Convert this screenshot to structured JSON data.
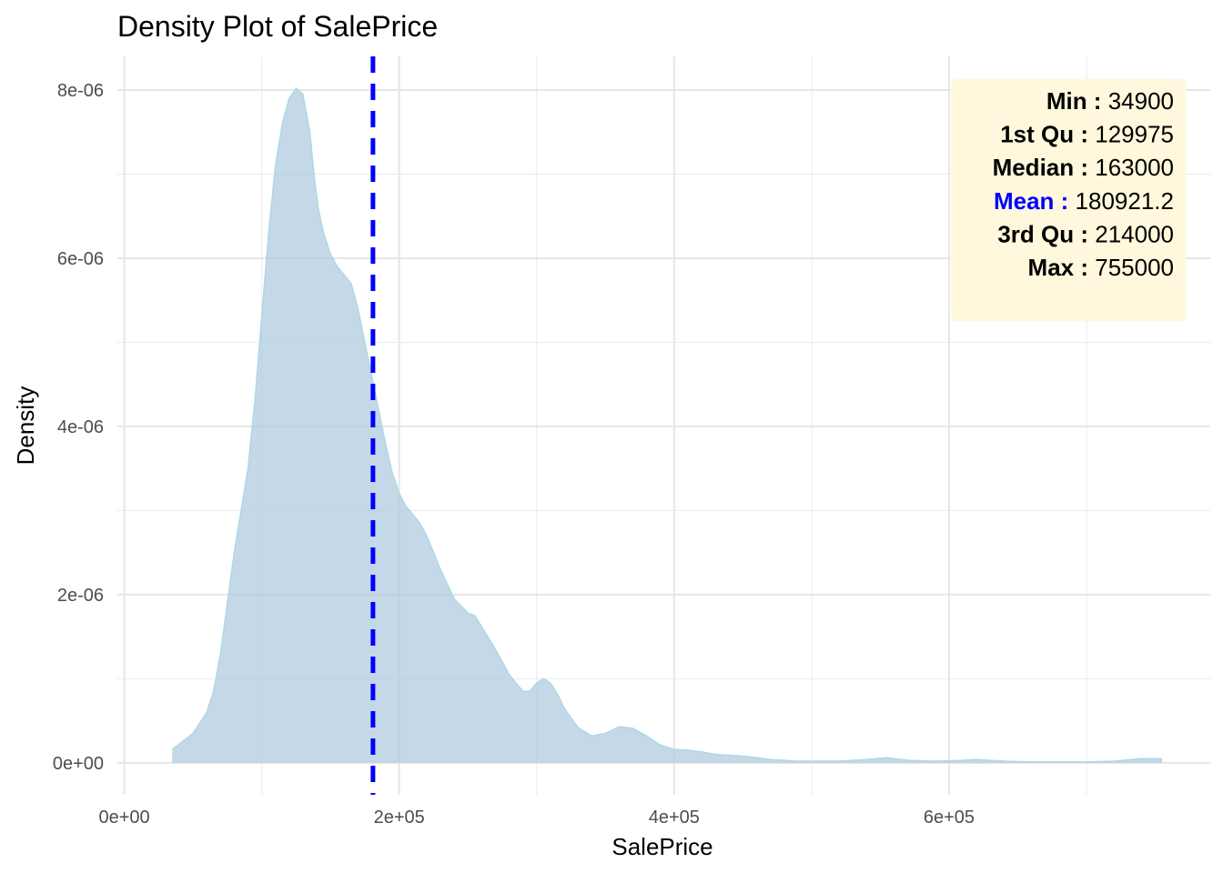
{
  "chart_data": {
    "type": "area",
    "title": "Density Plot of SalePrice",
    "xlabel": "SalePrice",
    "ylabel": "Density",
    "xlim": [
      -5000,
      790000
    ],
    "ylim": [
      -3.8e-07,
      8.4e-06
    ],
    "x_ticks": [
      {
        "value": 0,
        "label": "0e+00"
      },
      {
        "value": 200000,
        "label": "2e+05"
      },
      {
        "value": 400000,
        "label": "4e+05"
      },
      {
        "value": 600000,
        "label": "6e+05"
      }
    ],
    "x_minor_ticks": [
      100000,
      300000,
      500000,
      700000
    ],
    "y_ticks": [
      {
        "value": 0,
        "label": "0e+00"
      },
      {
        "value": 2e-06,
        "label": "2e-06"
      },
      {
        "value": 4e-06,
        "label": "4e-06"
      },
      {
        "value": 6e-06,
        "label": "6e-06"
      },
      {
        "value": 8e-06,
        "label": "8e-06"
      }
    ],
    "y_minor_ticks": [
      1e-06,
      3e-06,
      5e-06,
      7e-06
    ],
    "grid": true,
    "series": [
      {
        "fill_color": "#a9c6dd",
        "line_color": "#add8e6",
        "x": [
          34900,
          50000,
          60000,
          65000,
          70000,
          75000,
          80000,
          85000,
          90000,
          95000,
          100000,
          105000,
          110000,
          115000,
          120000,
          125000,
          130000,
          135000,
          138000,
          141000,
          145000,
          150000,
          155000,
          160000,
          165000,
          170000,
          175000,
          180000,
          185000,
          190000,
          195000,
          200000,
          205000,
          210000,
          215000,
          220000,
          225000,
          230000,
          240000,
          250000,
          255000,
          260000,
          270000,
          280000,
          290000,
          295000,
          300000,
          305000,
          310000,
          315000,
          320000,
          330000,
          340000,
          350000,
          360000,
          370000,
          380000,
          390000,
          400000,
          410000,
          420000,
          430000,
          440000,
          450000,
          460000,
          470000,
          480000,
          490000,
          500000,
          520000,
          540000,
          555000,
          570000,
          590000,
          610000,
          620000,
          640000,
          660000,
          680000,
          700000,
          720000,
          740000,
          755000
        ],
        "y": [
          1.6e-07,
          3.5e-07,
          6e-07,
          8.5e-07,
          1.3e-06,
          1.9e-06,
          2.5e-06,
          3e-06,
          3.5e-06,
          4.3e-06,
          5.3e-06,
          6.3e-06,
          7.1e-06,
          7.6e-06,
          7.9e-06,
          8.02e-06,
          7.95e-06,
          7.5e-06,
          7e-06,
          6.6e-06,
          6.3e-06,
          6.05e-06,
          5.9e-06,
          5.8e-06,
          5.7e-06,
          5.4e-06,
          5e-06,
          4.6e-06,
          4.2e-06,
          3.8e-06,
          3.45e-06,
          3.2e-06,
          3.05e-06,
          2.95e-06,
          2.85e-06,
          2.7e-06,
          2.5e-06,
          2.3e-06,
          1.95e-06,
          1.78e-06,
          1.75e-06,
          1.62e-06,
          1.35e-06,
          1.05e-06,
          8.5e-07,
          8.5e-07,
          9.5e-07,
          1e-06,
          9.5e-07,
          8.2e-07,
          6.5e-07,
          4.2e-07,
          3.2e-07,
          3.5e-07,
          4.3e-07,
          4.1e-07,
          3.2e-07,
          2.1e-07,
          1.6e-07,
          1.5e-07,
          1.3e-07,
          1e-07,
          9e-08,
          8e-08,
          6e-08,
          4e-08,
          3e-08,
          2e-08,
          2e-08,
          2e-08,
          4e-08,
          6e-08,
          3e-08,
          2e-08,
          3e-08,
          4e-08,
          2e-08,
          1e-08,
          1e-08,
          1e-08,
          2e-08,
          5e-08,
          5e-08
        ]
      }
    ],
    "mean_line": {
      "value": 180921.2,
      "color": "#0000ff",
      "style": "dashed"
    },
    "annotation_box": {
      "background": "#fff8dc",
      "rows": [
        {
          "key": "Min :",
          "value": "34900",
          "key_color": "#000000"
        },
        {
          "key": "1st Qu :",
          "value": "129975",
          "key_color": "#000000"
        },
        {
          "key": "Median :",
          "value": "163000",
          "key_color": "#000000"
        },
        {
          "key": "Mean :",
          "value": "180921.2",
          "key_color": "#0000ff"
        },
        {
          "key": "3rd Qu :",
          "value": "214000",
          "key_color": "#000000"
        },
        {
          "key": "Max :",
          "value": "755000",
          "key_color": "#000000"
        }
      ]
    }
  }
}
